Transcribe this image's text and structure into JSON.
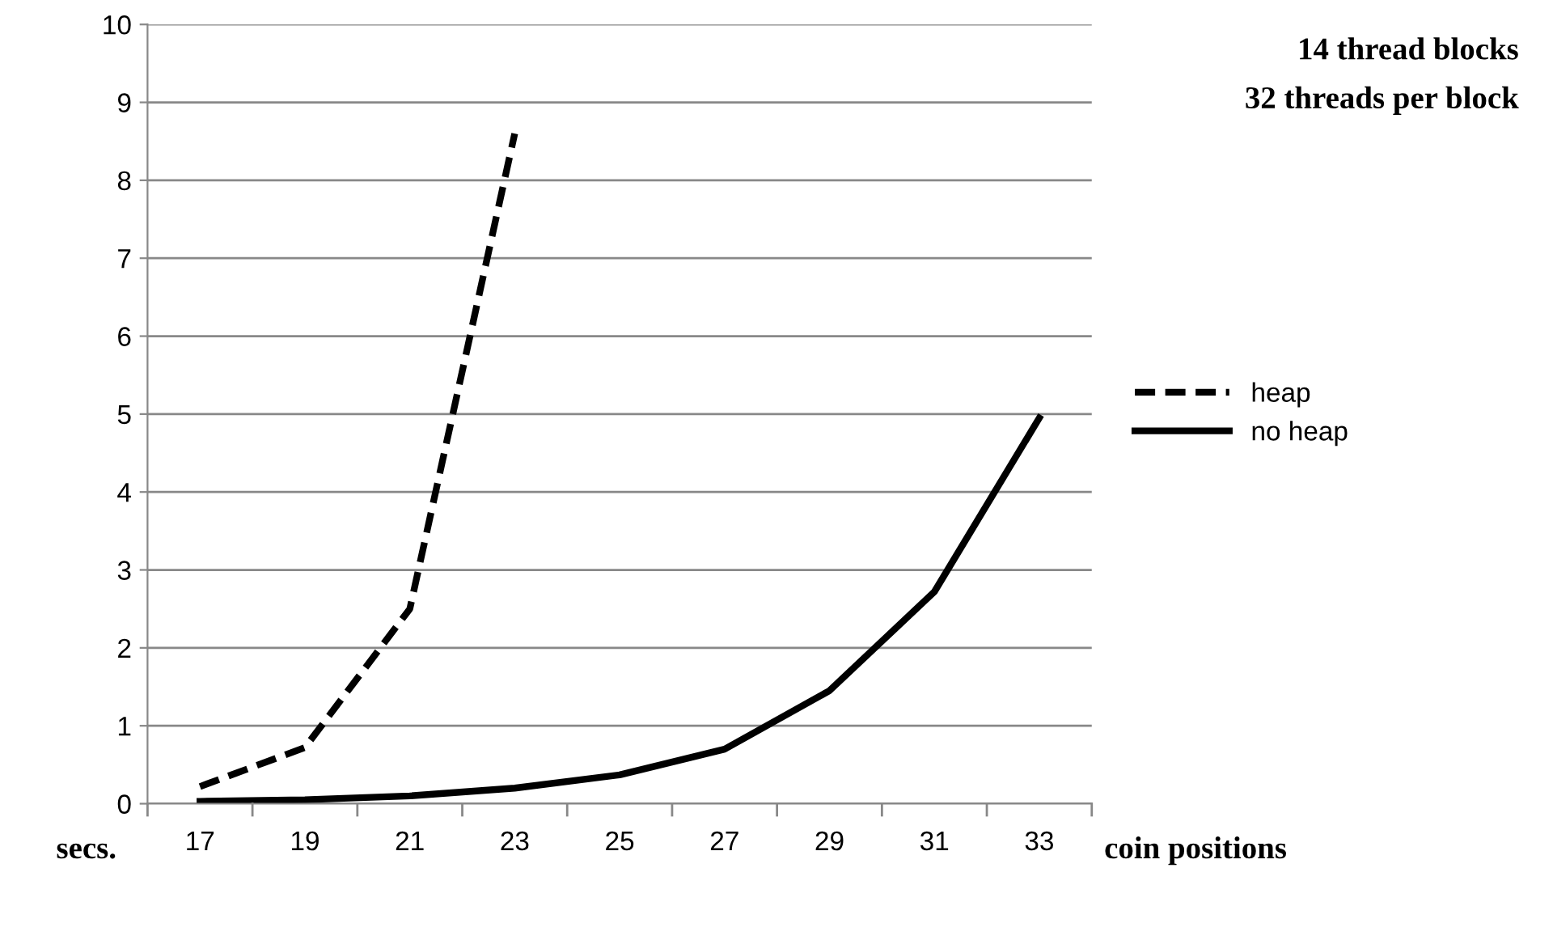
{
  "chart_data": {
    "type": "line",
    "xlabel": "coin positions",
    "ylabel": "secs.",
    "annotations": [
      "14 thread blocks",
      "32 threads per block"
    ],
    "categories": [
      "17",
      "19",
      "21",
      "23",
      "25",
      "27",
      "29",
      "31",
      "33"
    ],
    "series": [
      {
        "name": "heap",
        "color": "#000000",
        "line_style": "dashed",
        "values": [
          0.22,
          0.72,
          2.5,
          8.6,
          null,
          null,
          null,
          null,
          null
        ]
      },
      {
        "name": "no heap",
        "color": "#000000",
        "line_style": "solid",
        "values": [
          0.03,
          0.05,
          0.1,
          0.2,
          0.37,
          0.7,
          1.45,
          2.72,
          4.95
        ]
      }
    ],
    "ylim": [
      0,
      10
    ],
    "yticks": [
      0,
      1,
      2,
      3,
      4,
      5,
      6,
      7,
      8,
      9,
      10
    ],
    "grid": "y",
    "legend": "right",
    "marker": "none"
  }
}
